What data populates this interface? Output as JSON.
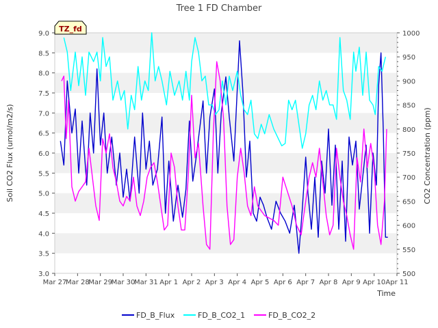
{
  "chart_data": {
    "type": "line",
    "title": "Tree 1 FD Chamber",
    "xlabel": "Time",
    "ylabel_left": "Soil CO2 Flux (umol/m2/s)",
    "ylabel_right": "CO2 Concentration (ppm)",
    "badge": "TZ_fd",
    "x_tick_labels": [
      "Mar 27",
      "Mar 28",
      "Mar 29",
      "Mar 30",
      "Mar 31",
      "Apr 1",
      "Apr 2",
      "Apr 3",
      "Apr 4",
      "Apr 5",
      "Apr 6",
      "Apr 7",
      "Apr 8",
      "Apr 9",
      "Apr 10",
      "Apr 11"
    ],
    "xlim": [
      0,
      15
    ],
    "ylim_left": [
      3.0,
      9.0
    ],
    "left_ticks": [
      "3.0",
      "3.5",
      "4.0",
      "4.5",
      "5.0",
      "5.5",
      "6.0",
      "6.5",
      "7.0",
      "7.5",
      "8.0",
      "8.5",
      "9.0"
    ],
    "ylim_right": [
      500,
      1000
    ],
    "right_ticks": [
      "500",
      "550",
      "600",
      "650",
      "700",
      "750",
      "800",
      "850",
      "900",
      "950",
      "1000"
    ],
    "grid": "horizontal bands",
    "legend_position": "bottom-center",
    "series": [
      {
        "name": "FD_B_Flux",
        "axis": "left",
        "color": "#0000cc",
        "x": [
          0.25,
          0.4,
          0.55,
          0.75,
          0.9,
          1.05,
          1.2,
          1.4,
          1.55,
          1.7,
          1.85,
          2.0,
          2.15,
          2.3,
          2.5,
          2.7,
          2.85,
          3.0,
          3.15,
          3.3,
          3.5,
          3.7,
          3.85,
          4.0,
          4.15,
          4.3,
          4.5,
          4.7,
          4.85,
          5.0,
          5.2,
          5.4,
          5.6,
          5.75,
          5.9,
          6.05,
          6.2,
          6.35,
          6.5,
          6.65,
          6.8,
          7.0,
          7.15,
          7.3,
          7.5,
          7.65,
          7.85,
          8.0,
          8.1,
          8.25,
          8.4,
          8.55,
          8.7,
          8.85,
          9.0,
          9.15,
          9.3,
          9.5,
          9.7,
          9.9,
          10.1,
          10.3,
          10.5,
          10.7,
          10.85,
          11.0,
          11.1,
          11.25,
          11.4,
          11.55,
          11.7,
          11.85,
          12.0,
          12.15,
          12.3,
          12.45,
          12.6,
          12.75,
          12.9,
          13.05,
          13.2,
          13.35,
          13.5,
          13.65,
          13.8,
          13.95,
          14.1,
          14.2,
          14.3,
          14.4,
          14.5,
          14.6
        ],
        "values": [
          6.3,
          5.7,
          7.8,
          6.5,
          7.1,
          5.5,
          6.8,
          5.2,
          7.0,
          6.0,
          8.1,
          6.2,
          7.0,
          5.5,
          6.4,
          5.2,
          6.0,
          4.9,
          5.6,
          4.8,
          6.4,
          5.0,
          7.0,
          5.6,
          6.3,
          5.2,
          5.6,
          6.9,
          4.5,
          5.8,
          4.3,
          5.2,
          4.4,
          5.1,
          6.8,
          5.3,
          5.9,
          6.6,
          7.3,
          5.5,
          6.9,
          7.6,
          5.5,
          7.0,
          7.9,
          6.9,
          5.8,
          7.6,
          8.8,
          7.5,
          5.4,
          6.3,
          4.5,
          4.3,
          4.9,
          4.7,
          4.4,
          4.1,
          4.8,
          4.5,
          4.3,
          4.0,
          4.7,
          3.5,
          4.6,
          5.9,
          5.0,
          4.1,
          5.4,
          3.9,
          5.8,
          5.0,
          6.6,
          4.7,
          6.2,
          4.1,
          5.8,
          3.8,
          6.4,
          5.7,
          6.3,
          4.6,
          5.4,
          6.2,
          4.0,
          6.0,
          5.2,
          7.7,
          8.5,
          6.6,
          3.9,
          3.9
        ]
      },
      {
        "name": "FD_B_CO2_1",
        "axis": "right",
        "color": "#00ffff",
        "x": [
          0.4,
          0.55,
          0.7,
          0.9,
          1.05,
          1.2,
          1.35,
          1.5,
          1.7,
          1.85,
          2.0,
          2.1,
          2.25,
          2.4,
          2.55,
          2.75,
          2.9,
          3.05,
          3.2,
          3.35,
          3.5,
          3.65,
          3.8,
          3.95,
          4.1,
          4.25,
          4.4,
          4.55,
          4.7,
          4.9,
          5.05,
          5.25,
          5.45,
          5.6,
          5.75,
          5.9,
          6.0,
          6.15,
          6.3,
          6.45,
          6.6,
          6.75,
          6.9,
          7.05,
          7.2,
          7.35,
          7.5,
          7.65,
          7.8,
          8.0,
          8.15,
          8.3,
          8.45,
          8.6,
          8.75,
          8.9,
          9.05,
          9.2,
          9.4,
          9.6,
          9.8,
          9.95,
          10.1,
          10.25,
          10.4,
          10.55,
          10.7,
          10.85,
          11.0,
          11.15,
          11.3,
          11.45,
          11.6,
          11.75,
          11.9,
          12.05,
          12.2,
          12.35,
          12.5,
          12.65,
          12.8,
          12.95,
          13.1,
          13.2,
          13.35,
          13.5,
          13.65,
          13.8,
          13.95,
          14.05,
          14.2,
          14.35,
          14.5
        ],
        "values": [
          990,
          960,
          880,
          960,
          890,
          950,
          870,
          960,
          940,
          960,
          900,
          990,
          930,
          950,
          860,
          900,
          860,
          880,
          800,
          870,
          840,
          930,
          860,
          900,
          880,
          1000,
          900,
          930,
          900,
          850,
          920,
          870,
          900,
          860,
          920,
          860,
          940,
          990,
          960,
          900,
          910,
          850,
          850,
          830,
          840,
          900,
          850,
          910,
          880,
          920,
          870,
          840,
          830,
          860,
          790,
          780,
          810,
          790,
          830,
          800,
          780,
          765,
          770,
          860,
          840,
          860,
          810,
          760,
          790,
          850,
          870,
          840,
          900,
          860,
          880,
          850,
          850,
          820,
          990,
          880,
          860,
          820,
          960,
          920,
          970,
          870,
          960,
          860,
          850,
          830,
          930,
          920,
          950
        ]
      },
      {
        "name": "FD_B_CO2_2",
        "axis": "right",
        "color": "#ff00ff",
        "x": [
          0.3,
          0.4,
          0.5,
          0.6,
          0.75,
          0.9,
          1.05,
          1.2,
          1.35,
          1.5,
          1.65,
          1.8,
          1.95,
          2.1,
          2.25,
          2.4,
          2.55,
          2.7,
          2.85,
          3.0,
          3.15,
          3.3,
          3.45,
          3.6,
          3.75,
          3.9,
          4.05,
          4.2,
          4.35,
          4.5,
          4.65,
          4.8,
          4.95,
          5.1,
          5.25,
          5.4,
          5.55,
          5.7,
          5.85,
          6.0,
          6.15,
          6.3,
          6.5,
          6.65,
          6.8,
          6.95,
          7.1,
          7.25,
          7.4,
          7.55,
          7.7,
          7.85,
          8.0,
          8.15,
          8.3,
          8.45,
          8.6,
          8.75,
          8.9,
          9.05,
          9.2,
          9.4,
          9.6,
          9.8,
          10.0,
          10.2,
          10.4,
          10.6,
          10.8,
          11.0,
          11.15,
          11.3,
          11.45,
          11.6,
          11.75,
          11.9,
          12.05,
          12.2,
          12.35,
          12.5,
          12.65,
          12.8,
          12.95,
          13.1,
          13.25,
          13.4,
          13.55,
          13.7,
          13.85,
          14.0,
          14.15,
          14.3,
          14.45,
          14.55
        ],
        "values": [
          900,
          910,
          780,
          860,
          680,
          650,
          670,
          680,
          690,
          760,
          700,
          640,
          610,
          780,
          750,
          790,
          720,
          690,
          650,
          640,
          660,
          650,
          700,
          640,
          620,
          650,
          700,
          720,
          730,
          690,
          640,
          590,
          600,
          750,
          720,
          640,
          590,
          590,
          700,
          870,
          740,
          770,
          640,
          560,
          550,
          790,
          940,
          900,
          820,
          640,
          560,
          570,
          700,
          760,
          710,
          640,
          620,
          680,
          640,
          630,
          620,
          615,
          610,
          600,
          700,
          670,
          640,
          600,
          580,
          650,
          700,
          730,
          700,
          760,
          690,
          620,
          580,
          600,
          760,
          700,
          650,
          620,
          580,
          550,
          740,
          690,
          800,
          720,
          770,
          720,
          600,
          560,
          650,
          800
        ]
      }
    ]
  }
}
